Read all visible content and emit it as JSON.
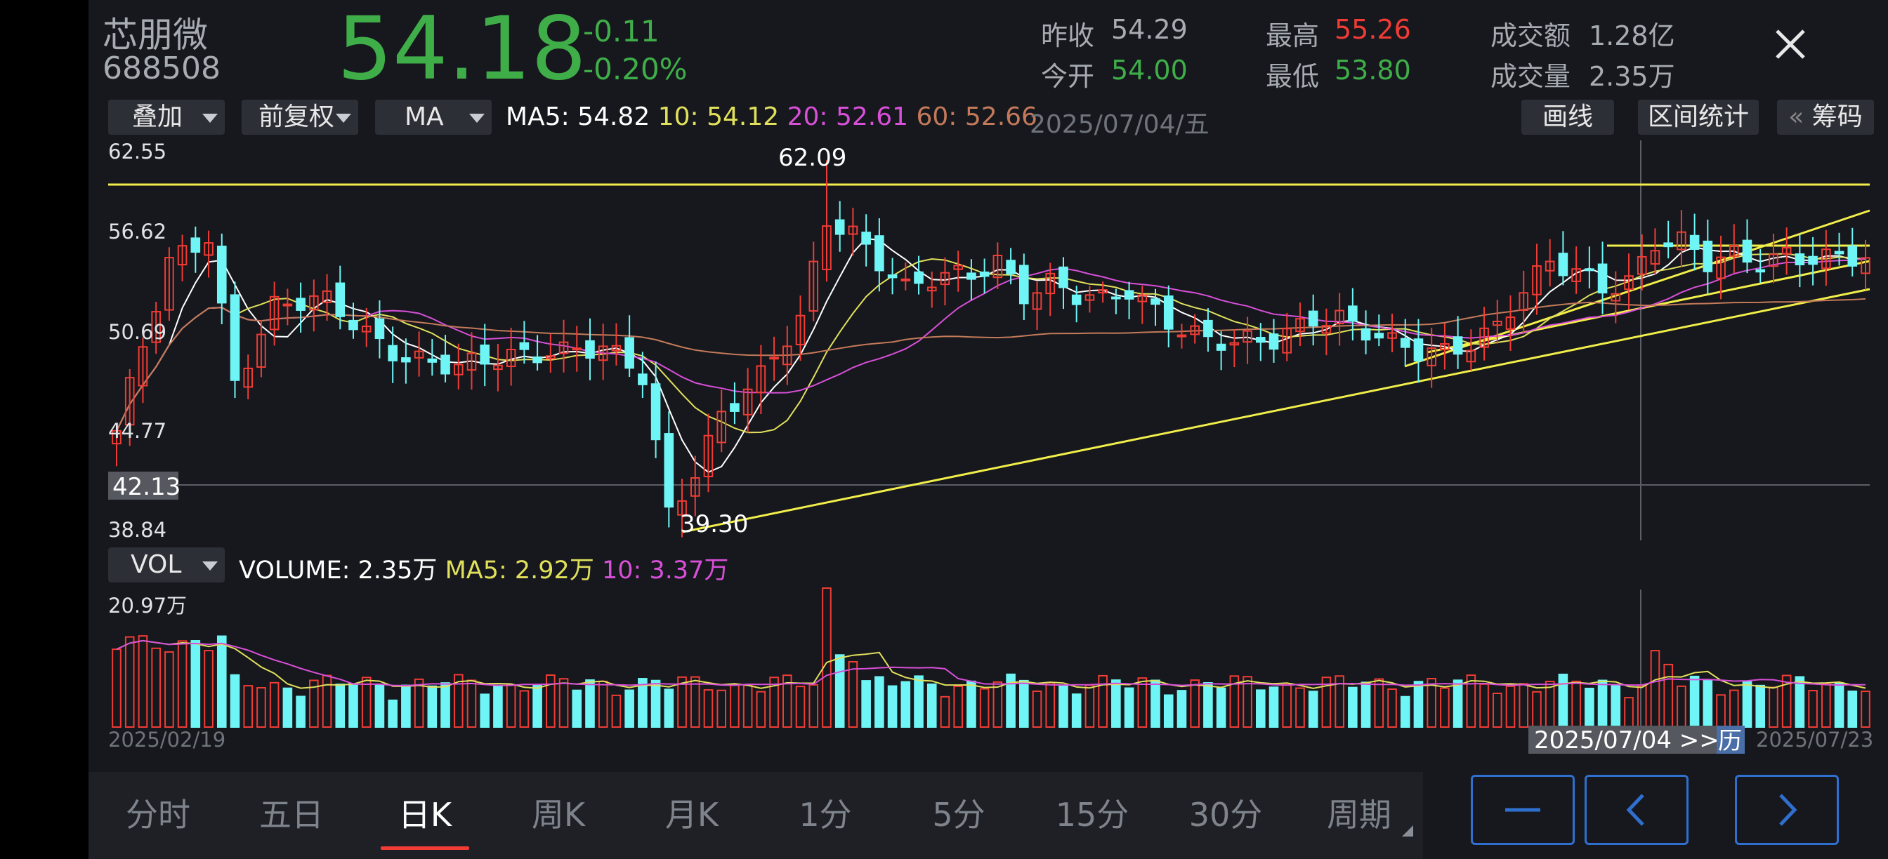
{
  "stock": {
    "name": "芯朋微",
    "code": "688508",
    "price": "54.18",
    "change": "-0.11",
    "change_pct": "-0.20%"
  },
  "stats": {
    "prev_close_label": "昨收",
    "prev_close": "54.29",
    "open_label": "今开",
    "open": "54.00",
    "high_label": "最高",
    "high": "55.26",
    "low_label": "最低",
    "low": "53.80",
    "amount_label": "成交额",
    "amount": "1.28亿",
    "volume_label": "成交量",
    "volume": "2.35万"
  },
  "toolbar": {
    "overlay": "叠加",
    "adjust": "前复权",
    "indicator": "MA",
    "ma5": "MA5: 54.82",
    "ma10": "10: 54.12",
    "ma20": "20: 52.61",
    "ma60": "60: 52.66",
    "date": "2025/07/04/五",
    "draw": "画线",
    "range_stats": "区间统计",
    "chips": "筹码",
    "chips_prefix": "«"
  },
  "price_axis": {
    "t1": "62.55",
    "t2": "56.62",
    "t3": "50.69",
    "t4": "44.77",
    "t5": "38.84",
    "crosshair": "42.13"
  },
  "annotations": {
    "high": "62.09",
    "low": "39.30"
  },
  "volume_bar": {
    "indicator": "VOL",
    "volume": "VOLUME: 2.35万",
    "ma5": "MA5: 2.92万",
    "ma10": "10: 3.37万",
    "max": "20.97万"
  },
  "dates": {
    "start": "2025/02/19",
    "cursor": "2025/07/04 >>",
    "cursor_tag": "历",
    "end": "2025/07/23"
  },
  "tabs": [
    "分时",
    "五日",
    "日K",
    "周K",
    "月K",
    "1分",
    "5分",
    "15分",
    "30分",
    "周期"
  ],
  "active_tab": "日K",
  "colors": {
    "up": "#f03c35",
    "down": "#6ff5f5",
    "ma5": "#ffffff",
    "ma10": "#e1e05c",
    "ma20": "#d84fd8",
    "ma60": "#c47a5a",
    "trend": "#f2ee4a",
    "accent": "#2f6fd0",
    "price_green": "#3fae49"
  },
  "chart_data": {
    "type": "candlestick",
    "period": "daily",
    "x_range": [
      "2025/02/19",
      "2025/07/23"
    ],
    "ylim": [
      38.84,
      62.55
    ],
    "price_ticks": [
      62.55,
      56.62,
      50.69,
      44.77,
      38.84
    ],
    "crosshair_price": 42.13,
    "crosshair_date": "2025/07/04",
    "annotated_high": 62.09,
    "annotated_low": 39.3,
    "volume_max": 209700,
    "latest": {
      "close": 54.18,
      "open": 54.0,
      "high": 55.26,
      "low": 53.8,
      "prev_close": 54.29,
      "volume": 23500
    },
    "ma": {
      "MA5": 54.82,
      "MA10": 54.12,
      "MA20": 52.61,
      "MA60": 52.66
    },
    "volume_ma": {
      "MA5": 29200,
      "MA10": 33700
    }
  }
}
